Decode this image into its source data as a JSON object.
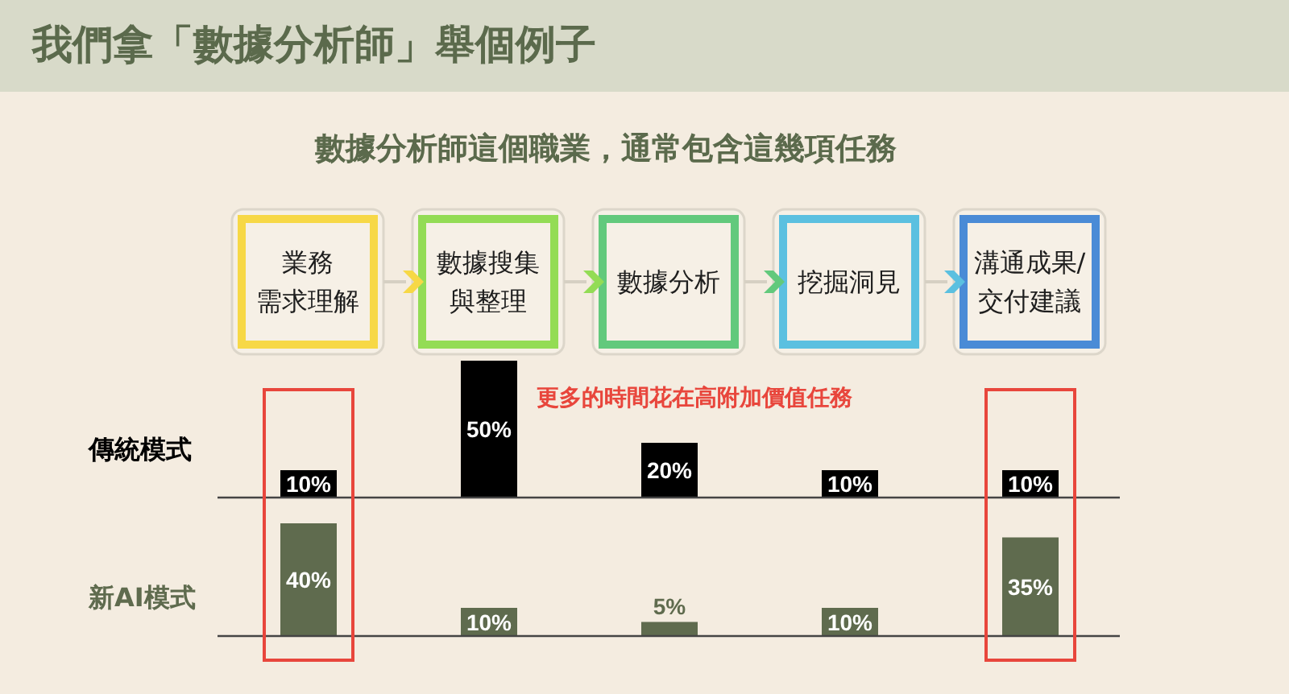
{
  "chart_data": [
    {
      "type": "bar",
      "title": "我們拿「數據分析師」舉個例子",
      "subtitle": "數據分析師這個職業，通常包含這幾項任務",
      "categories": [
        "業務需求理解",
        "數據搜集與整理",
        "數據分析",
        "挖掘洞見",
        "溝通成果/交付建議"
      ],
      "series": [
        {
          "name": "傳統模式",
          "color": "#000000",
          "values": [
            10,
            50,
            20,
            10,
            10
          ],
          "value_labels": [
            "10%",
            "50%",
            "20%",
            "10%",
            "10%"
          ]
        }
      ],
      "annotations": [
        "更多的時間花在高附加價值任務"
      ],
      "tick_labels": "x"
    },
    {
      "type": "bar",
      "categories": [
        null,
        null,
        null,
        null,
        null
      ],
      "series": [
        {
          "name": "新AI模式",
          "color": "#5f6b4e",
          "values": [
            40,
            10,
            5,
            10,
            35
          ],
          "value_labels": [
            "40%",
            "10%",
            "5%",
            "10%",
            "35%"
          ]
        }
      ],
      "tick_labels": false
    }
  ]
}
